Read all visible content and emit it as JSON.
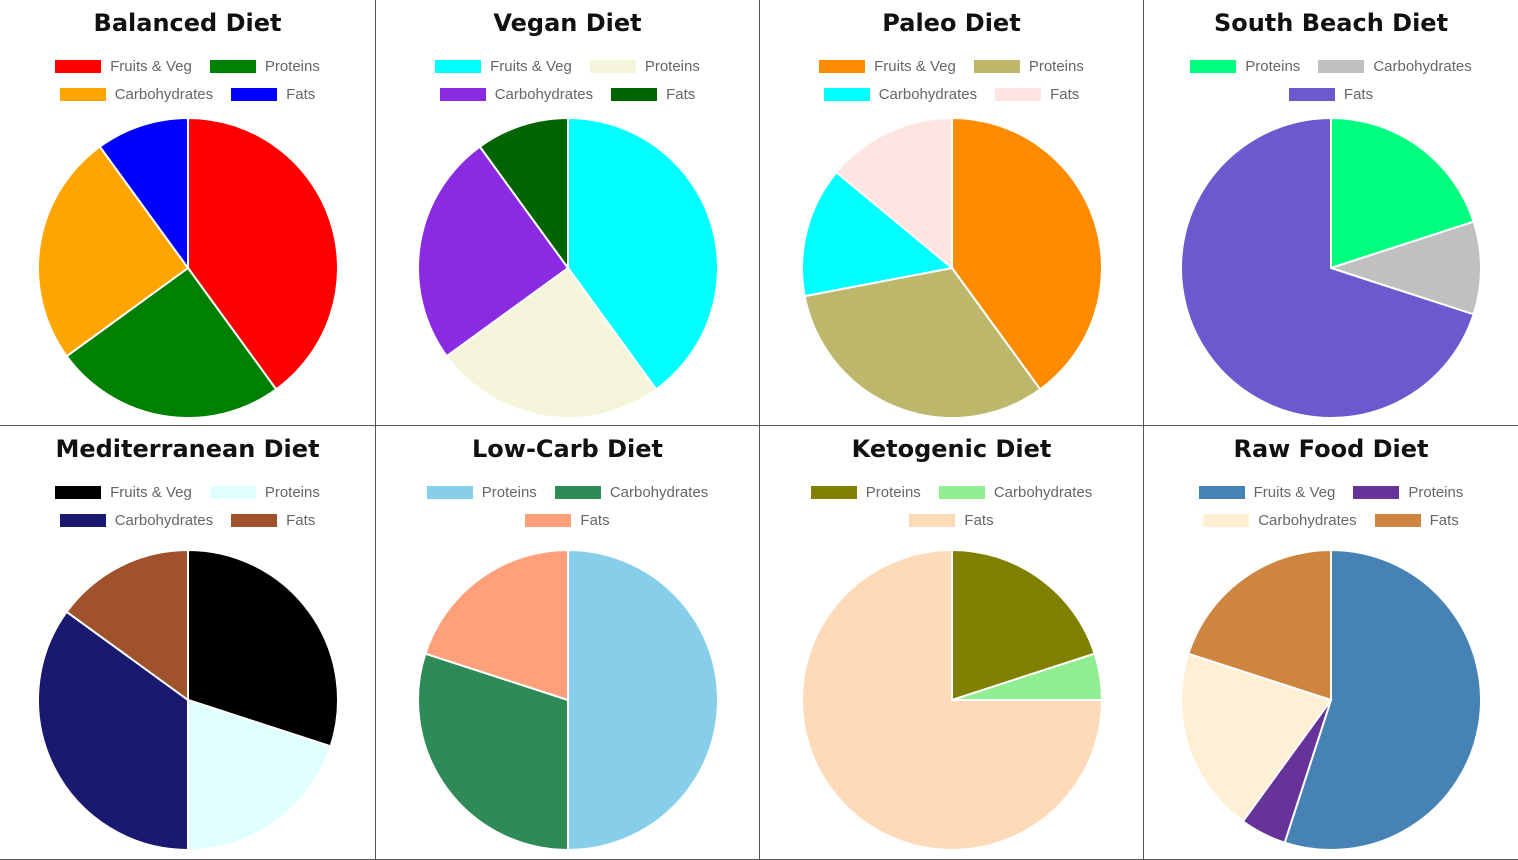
{
  "chart_data": [
    {
      "type": "pie",
      "title": "Balanced Diet",
      "legend_position": "top",
      "categories": [
        "Fruits & Veg",
        "Proteins",
        "Carbohydrates",
        "Fats"
      ],
      "values": [
        40,
        25,
        25,
        10
      ],
      "colors": [
        "#ff0000",
        "#008000",
        "#ffa500",
        "#0000ff"
      ]
    },
    {
      "type": "pie",
      "title": "Vegan Diet",
      "legend_position": "top",
      "categories": [
        "Fruits & Veg",
        "Proteins",
        "Carbohydrates",
        "Fats"
      ],
      "values": [
        40,
        25,
        25,
        10
      ],
      "colors": [
        "#00ffff",
        "#f5f5dc",
        "#8a2be2",
        "#006400"
      ]
    },
    {
      "type": "pie",
      "title": "Paleo Diet",
      "legend_position": "top",
      "categories": [
        "Fruits & Veg",
        "Proteins",
        "Carbohydrates",
        "Fats"
      ],
      "values": [
        40,
        32,
        14,
        14
      ],
      "colors": [
        "#ff8c00",
        "#bdb76b",
        "#00ffff",
        "#ffe4e1"
      ]
    },
    {
      "type": "pie",
      "title": "South Beach Diet",
      "legend_position": "top",
      "categories": [
        "Proteins",
        "Carbohydrates",
        "Fats"
      ],
      "values": [
        20,
        10,
        70
      ],
      "colors": [
        "#00ff7f",
        "#c0c0c0",
        "#6a5acd"
      ]
    },
    {
      "type": "pie",
      "title": "Mediterranean Diet",
      "legend_position": "top",
      "categories": [
        "Fruits & Veg",
        "Proteins",
        "Carbohydrates",
        "Fats"
      ],
      "values": [
        30,
        20,
        35,
        15
      ],
      "colors": [
        "#000000",
        "#e0ffff",
        "#191970",
        "#a0522d"
      ]
    },
    {
      "type": "pie",
      "title": "Low-Carb Diet",
      "legend_position": "top",
      "categories": [
        "Proteins",
        "Carbohydrates",
        "Fats"
      ],
      "values": [
        50,
        30,
        20
      ],
      "colors": [
        "#87ceeb",
        "#2e8b57",
        "#ffa07a"
      ]
    },
    {
      "type": "pie",
      "title": "Ketogenic Diet",
      "legend_position": "top",
      "categories": [
        "Proteins",
        "Carbohydrates",
        "Fats"
      ],
      "values": [
        20,
        5,
        75
      ],
      "colors": [
        "#808000",
        "#90ee90",
        "#ffdab9"
      ]
    },
    {
      "type": "pie",
      "title": "Raw Food Diet",
      "legend_position": "top",
      "categories": [
        "Fruits & Veg",
        "Proteins",
        "Carbohydrates",
        "Fats"
      ],
      "values": [
        55,
        5,
        20,
        20
      ],
      "colors": [
        "#4682b4",
        "#663399",
        "#ffefd5",
        "#cd853f"
      ]
    }
  ]
}
